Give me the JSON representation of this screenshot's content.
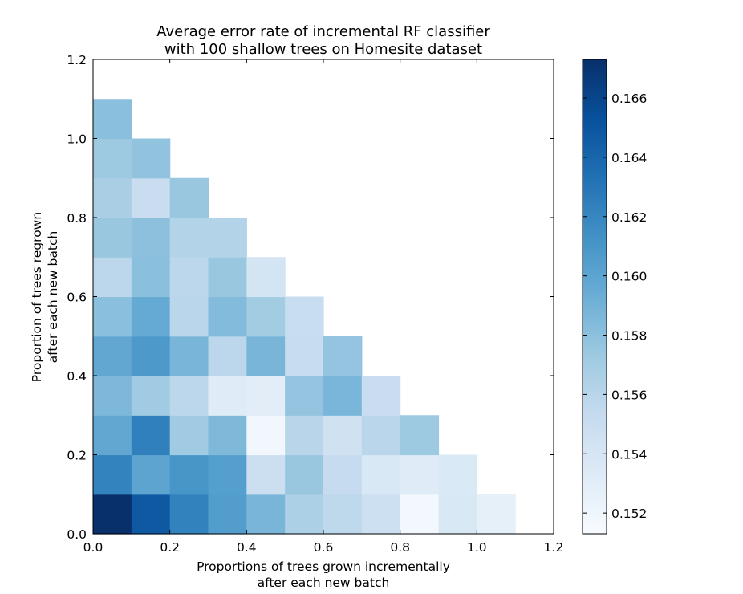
{
  "chart_data": {
    "type": "heatmap",
    "title": [
      "Average error rate of incremental RF classifier",
      "with 100 shallow trees on Homesite dataset"
    ],
    "xlabel": [
      "Proportions of trees grown incrementally",
      "after each new batch"
    ],
    "ylabel": [
      "Proportion of trees regrown",
      "after each new batch"
    ],
    "xlim": [
      0,
      1.2
    ],
    "ylim": [
      0,
      1.2
    ],
    "xticks": [
      "0.0",
      "0.2",
      "0.4",
      "0.6",
      "0.8",
      "1.0",
      "1.2"
    ],
    "yticks": [
      "0.0",
      "0.2",
      "0.4",
      "0.6",
      "0.8",
      "1.0",
      "1.2"
    ],
    "cell_size": 0.1,
    "colormap": "Blues",
    "clim": [
      0.1513,
      0.1673
    ],
    "colorbar_ticks": [
      "0.152",
      "0.154",
      "0.156",
      "0.158",
      "0.160",
      "0.162",
      "0.164",
      "0.166"
    ],
    "rows": [
      {
        "y": 0.0,
        "values": [
          0.1673,
          0.1648,
          0.1623,
          0.1605,
          0.1588,
          0.1566,
          0.1557,
          0.1547,
          0.1517,
          0.1537,
          0.1527
        ]
      },
      {
        "y": 0.1,
        "values": [
          0.1622,
          0.16,
          0.161,
          0.1604,
          0.1548,
          0.1575,
          0.1553,
          0.1537,
          0.1532,
          0.1536
        ]
      },
      {
        "y": 0.2,
        "values": [
          0.1598,
          0.1624,
          0.1572,
          0.1585,
          0.1518,
          0.156,
          0.1545,
          0.1559,
          0.1573
        ]
      },
      {
        "y": 0.3,
        "values": [
          0.1586,
          0.1572,
          0.1558,
          0.1532,
          0.153,
          0.1577,
          0.1587,
          0.155
        ]
      },
      {
        "y": 0.4,
        "values": [
          0.1598,
          0.1608,
          0.1588,
          0.1558,
          0.1588,
          0.1552,
          0.1577
        ]
      },
      {
        "y": 0.5,
        "values": [
          0.1581,
          0.1596,
          0.1559,
          0.1584,
          0.1571,
          0.1551
        ]
      },
      {
        "y": 0.6,
        "values": [
          0.1558,
          0.1581,
          0.1558,
          0.1575,
          0.1542
        ]
      },
      {
        "y": 0.7,
        "values": [
          0.1575,
          0.158,
          0.1563,
          0.1563
        ]
      },
      {
        "y": 0.8,
        "values": [
          0.1567,
          0.155,
          0.1575
        ]
      },
      {
        "y": 0.9,
        "values": [
          0.1573,
          0.1578
        ]
      },
      {
        "y": 1.0,
        "values": [
          0.1581
        ]
      }
    ]
  }
}
